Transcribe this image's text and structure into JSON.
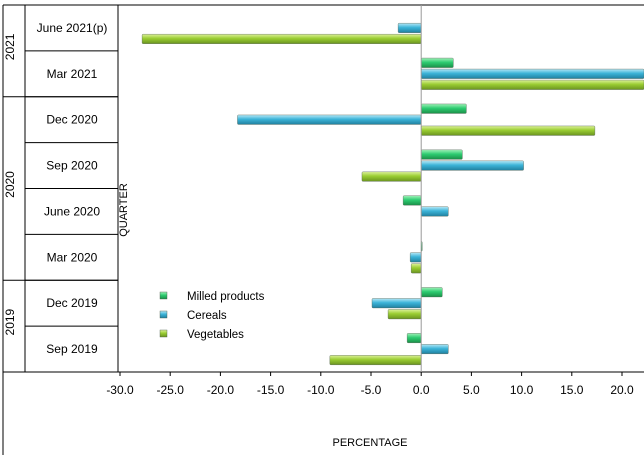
{
  "chart_data": {
    "type": "bar",
    "orientation": "horizontal",
    "title": "",
    "xlabel": "PERCENTAGE",
    "ylabel": "QUARTER",
    "xlim": [
      -30,
      22.5
    ],
    "x_ticks": [
      "-30.0",
      "-25.0",
      "-20.0",
      "-15.0",
      "-10.0",
      "-5.0",
      "0.0",
      "5.0",
      "10.0",
      "15.0",
      "20.0"
    ],
    "grid": false,
    "legend_position": "bottom-left",
    "year_groups": [
      {
        "label": "2021",
        "categories": [
          "June 2021(p)",
          "Mar 2021"
        ]
      },
      {
        "label": "2020",
        "categories": [
          "Dec 2020",
          "Sep 2020",
          "June 2020",
          "Mar 2020"
        ]
      },
      {
        "label": "2019",
        "categories": [
          "Dec 2019",
          "Sep 2019"
        ]
      }
    ],
    "categories": [
      "June 2021(p)",
      "Mar 2021",
      "Dec 2020",
      "Sep 2020",
      "June 2020",
      "Mar 2020",
      "Dec 2019",
      "Sep 2019"
    ],
    "series": [
      {
        "name": "Milled products",
        "color": "#2ecc71",
        "values": [
          0.0,
          3.2,
          4.5,
          4.1,
          -1.8,
          0.1,
          2.1,
          -1.4
        ]
      },
      {
        "name": "Cereals",
        "color": "#3cb4d8",
        "values": [
          -2.3,
          22.5,
          -18.3,
          10.2,
          2.7,
          -1.1,
          -4.9,
          2.7
        ]
      },
      {
        "name": "Vegetables",
        "color": "#9acd32",
        "values": [
          -27.8,
          22.5,
          17.3,
          -5.9,
          0.0,
          -1.0,
          -3.3,
          -9.1
        ]
      }
    ]
  }
}
